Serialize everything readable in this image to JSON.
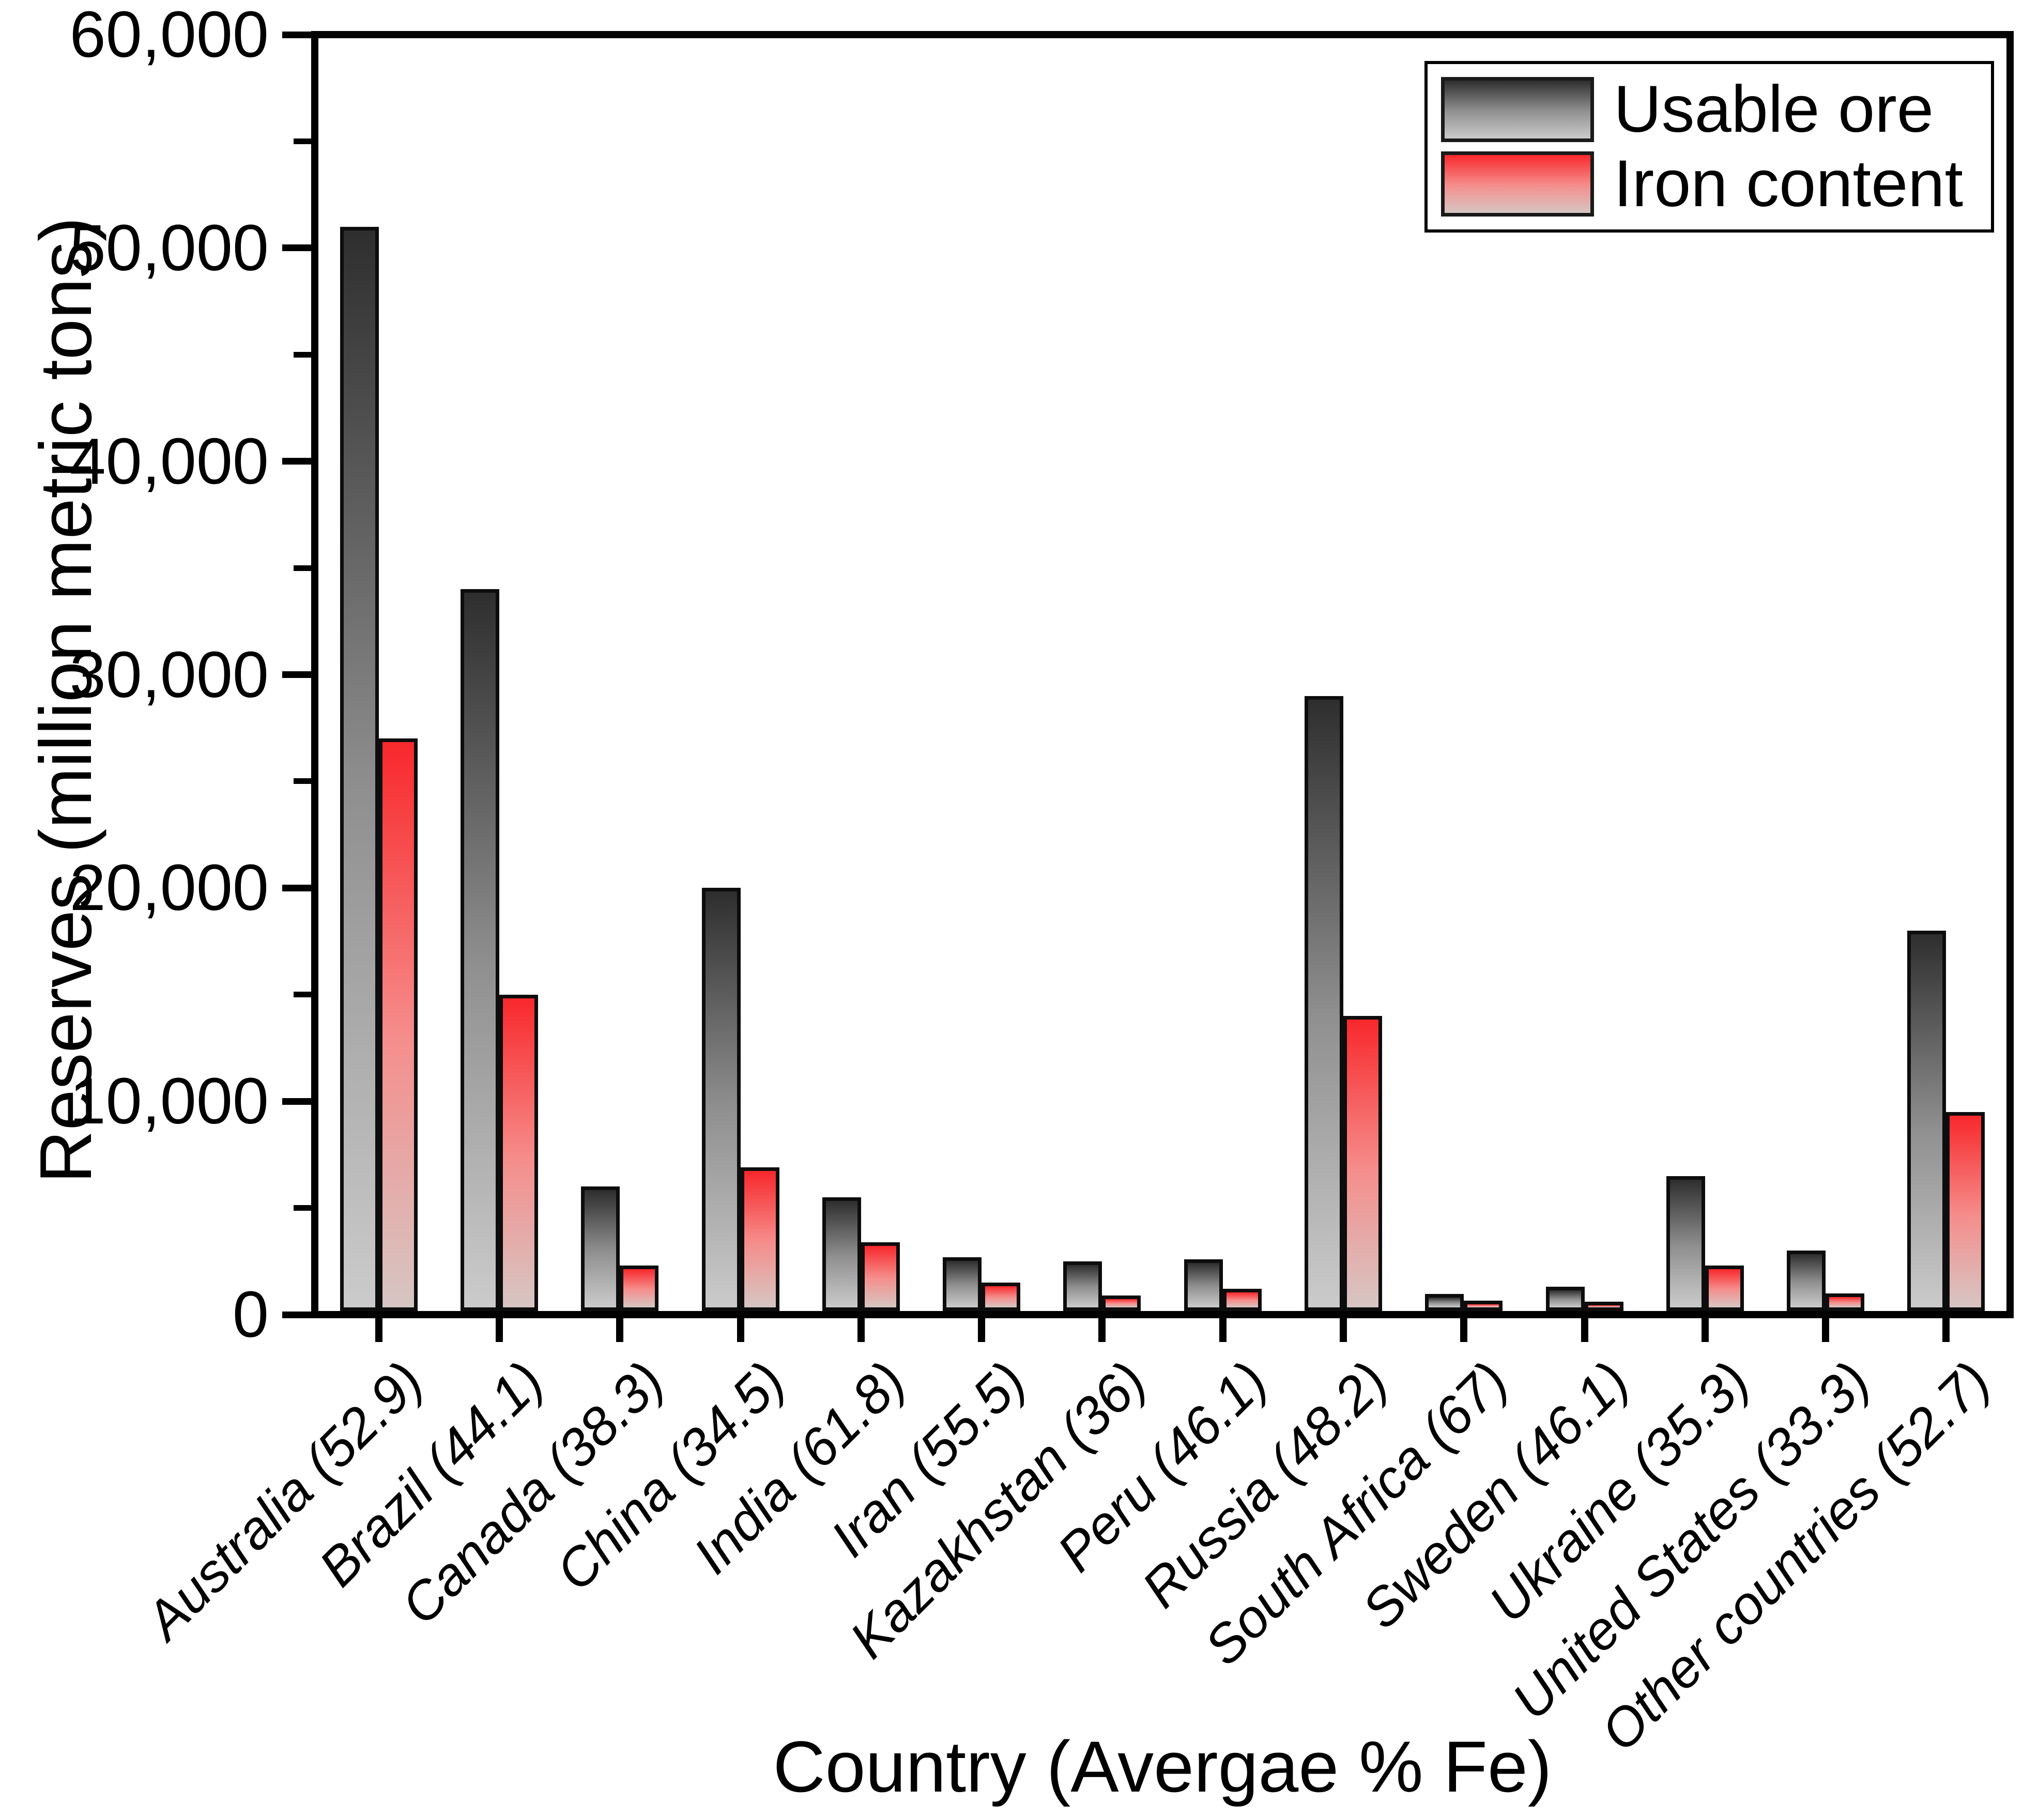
{
  "page": {
    "background": "#ffffff"
  },
  "chart_data": {
    "type": "bar",
    "title": "",
    "xlabel": "Country (Avergae % Fe)",
    "ylabel": "Reserves (million metric tons)",
    "ylim": [
      0,
      60000
    ],
    "y_major_tick_interval": 10000,
    "y_minor_tick_interval": 5000,
    "y_tick_labels": [
      "0",
      "10,000",
      "20,000",
      "30,000",
      "40,000",
      "50,000",
      "60,000"
    ],
    "grid": false,
    "legend_position": "top-right-inside",
    "categories": [
      "Australia (52.9)",
      "Brazil (44.1)",
      "Canada (38.3)",
      "China (34.5)",
      "India (61.8)",
      "Iran (55.5)",
      "Kazakhstan (36)",
      "Peru (46.1)",
      "Russia (48.2)",
      "South Africa (67)",
      "Sweden (46.1)",
      "Ukraine (35.3)",
      "United States (33.3)",
      "Other countries (52.7)"
    ],
    "avg_fe_percent": [
      52.9,
      44.1,
      38.3,
      34.5,
      61.8,
      55.5,
      36,
      46.1,
      48.2,
      67,
      46.1,
      35.3,
      33.3,
      52.7
    ],
    "series": [
      {
        "name": "Usable ore",
        "values": [
          51000,
          34000,
          6000,
          20000,
          5500,
          2700,
          2500,
          2600,
          29000,
          970,
          1300,
          6500,
          3000,
          18000
        ],
        "gradient_top": "#2e2e2e",
        "gradient_mid": "#8f8f8f",
        "gradient_bottom": "#cbcbcb"
      },
      {
        "name": "Iron content",
        "values": [
          27000,
          15000,
          2300,
          6900,
          3400,
          1500,
          900,
          1200,
          14000,
          650,
          600,
          2300,
          1000,
          9500
        ],
        "gradient_top": "#f8282c",
        "gradient_mid": "#f58d8b",
        "gradient_bottom": "#d6c6c3"
      }
    ],
    "axis_color": "#000000",
    "bar_border_color": "#0d0d0d"
  }
}
